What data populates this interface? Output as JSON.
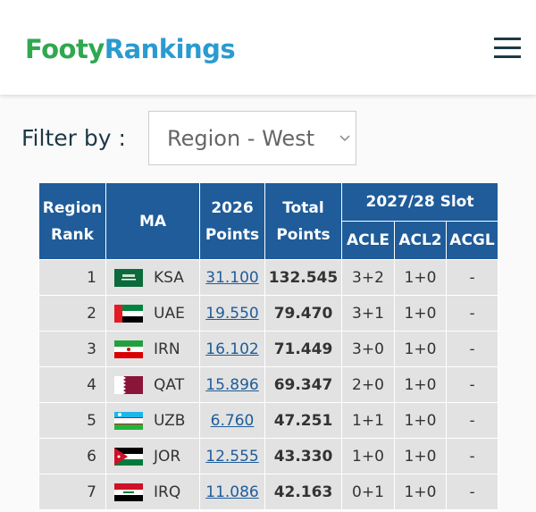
{
  "header": {
    "logo": {
      "part1": "Footy",
      "part2": "Rankings"
    }
  },
  "filter": {
    "label": "Filter by :",
    "selected": "Region - West"
  },
  "table": {
    "headers": [
      "Region Rank",
      "MA",
      "2026 Points",
      "Total Points",
      "2027/28 Slot"
    ],
    "subheaders": [
      "ACLE",
      "ACL2",
      "ACGL"
    ],
    "rows": [
      [
        "1",
        "KSA",
        "31.100",
        "132.545",
        "3+2",
        "1+0",
        "-"
      ],
      [
        "2",
        "UAE",
        "19.550",
        "79.470",
        "3+1",
        "1+0",
        "-"
      ],
      [
        "3",
        "IRN",
        "16.102",
        "71.449",
        "3+0",
        "1+0",
        "-"
      ],
      [
        "4",
        "QAT",
        "15.896",
        "69.347",
        "2+0",
        "1+0",
        "-"
      ],
      [
        "5",
        "UZB",
        "6.760",
        "47.251",
        "1+1",
        "1+0",
        "-"
      ],
      [
        "6",
        "JOR",
        "12.555",
        "43.330",
        "1+0",
        "1+0",
        "-"
      ],
      [
        "7",
        "IRQ",
        "11.086",
        "42.163",
        "0+1",
        "1+0",
        "-"
      ]
    ]
  }
}
